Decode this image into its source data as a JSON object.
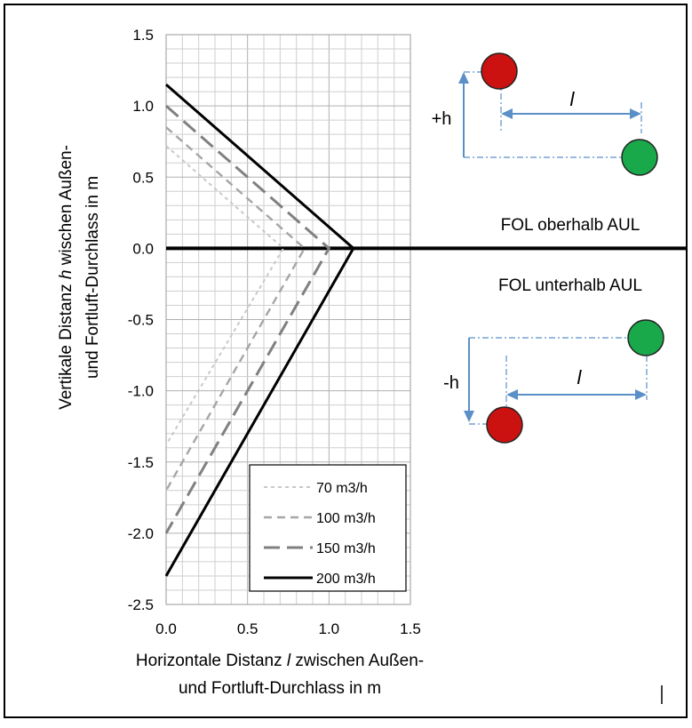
{
  "colors": {
    "series_70": "#c8c8c8",
    "series_100": "#a6a6a6",
    "series_150": "#808080",
    "series_200": "#000000",
    "supply_inlet": "#cc1111",
    "exhaust_outlet": "#19a84a",
    "dimension_arrow": "#5b8fc7"
  },
  "chart_data": {
    "type": "line",
    "xlabel": [
      "Horizontale Distanz ",
      "l",
      " zwischen Außen-",
      "und Fortluft-Durchlass in m"
    ],
    "ylabel": [
      "Vertikale Distanz ",
      "h",
      " wischen Außen-",
      "und Fortluft-Durchlass in m"
    ],
    "xlim": [
      0,
      1.5
    ],
    "ylim": [
      -2.5,
      1.5
    ],
    "x_ticks": [
      "0.0",
      "0.5",
      "1.0",
      "1.5"
    ],
    "y_ticks": [
      "1.5",
      "1.0",
      "0.5",
      "0.0",
      "-0.5",
      "-1.0",
      "-1.5",
      "-2.0",
      "-2.5"
    ],
    "grid": true,
    "legend": "bottom-right",
    "series": [
      {
        "name": "70 m3/h",
        "x": [
          0,
          0.72,
          0
        ],
        "y": [
          0.72,
          0,
          -1.38
        ],
        "style": "short-dash"
      },
      {
        "name": "100 m3/h",
        "x": [
          0,
          0.85,
          0
        ],
        "y": [
          0.85,
          0,
          -1.7
        ],
        "style": "dash"
      },
      {
        "name": "150 m3/h",
        "x": [
          0,
          1.0,
          0
        ],
        "y": [
          1.0,
          0,
          -2.0
        ],
        "style": "long-dash"
      },
      {
        "name": "200 m3/h",
        "x": [
          0,
          1.15,
          0
        ],
        "y": [
          1.15,
          0,
          -2.3
        ],
        "style": "solid"
      }
    ]
  },
  "diagram": {
    "upper": {
      "h_label": "+h",
      "l_label": "l",
      "caption": "FOL oberhalb AUL"
    },
    "lower": {
      "h_label": "-h",
      "l_label": "l",
      "caption": "FOL unterhalb AUL"
    }
  }
}
